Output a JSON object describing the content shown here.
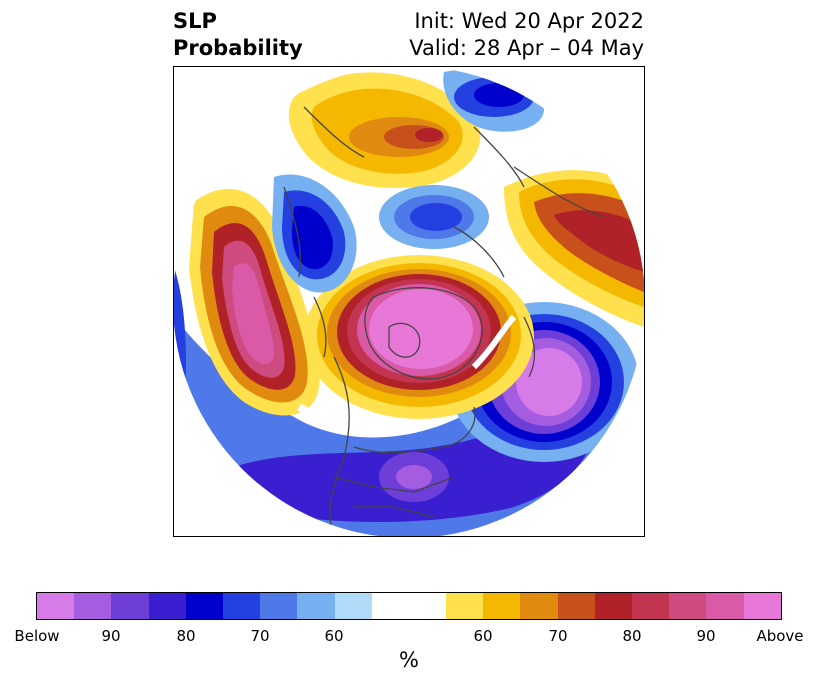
{
  "title": {
    "left_line1": "SLP",
    "left_line2": "Probability",
    "right_line1": "Init: Wed 20 Apr 2022",
    "right_line2": "Valid: 28 Apr – 04 May"
  },
  "colorbar": {
    "units": "%",
    "segments": [
      {
        "color": "#d77be8"
      },
      {
        "color": "#a45de0"
      },
      {
        "color": "#6e3ed9"
      },
      {
        "color": "#3a1fd0"
      },
      {
        "color": "#0000cd"
      },
      {
        "color": "#2440e0"
      },
      {
        "color": "#4f78e8"
      },
      {
        "color": "#76b0f0"
      },
      {
        "color": "#b0dcfa"
      },
      {
        "color": "#ffffff"
      },
      {
        "color": "#ffffff"
      },
      {
        "color": "#ffe14d"
      },
      {
        "color": "#f5b800"
      },
      {
        "color": "#e08a10"
      },
      {
        "color": "#c8501a"
      },
      {
        "color": "#b02228"
      },
      {
        "color": "#c23450"
      },
      {
        "color": "#cd4b7e"
      },
      {
        "color": "#da5aa8"
      },
      {
        "color": "#e878d8"
      }
    ],
    "tick_labels": [
      "Below",
      "90",
      "80",
      "70",
      "60",
      "60",
      "70",
      "80",
      "90",
      "Above"
    ]
  },
  "map": {
    "projection": "north-polar-stereographic",
    "field": "SLP probability"
  }
}
